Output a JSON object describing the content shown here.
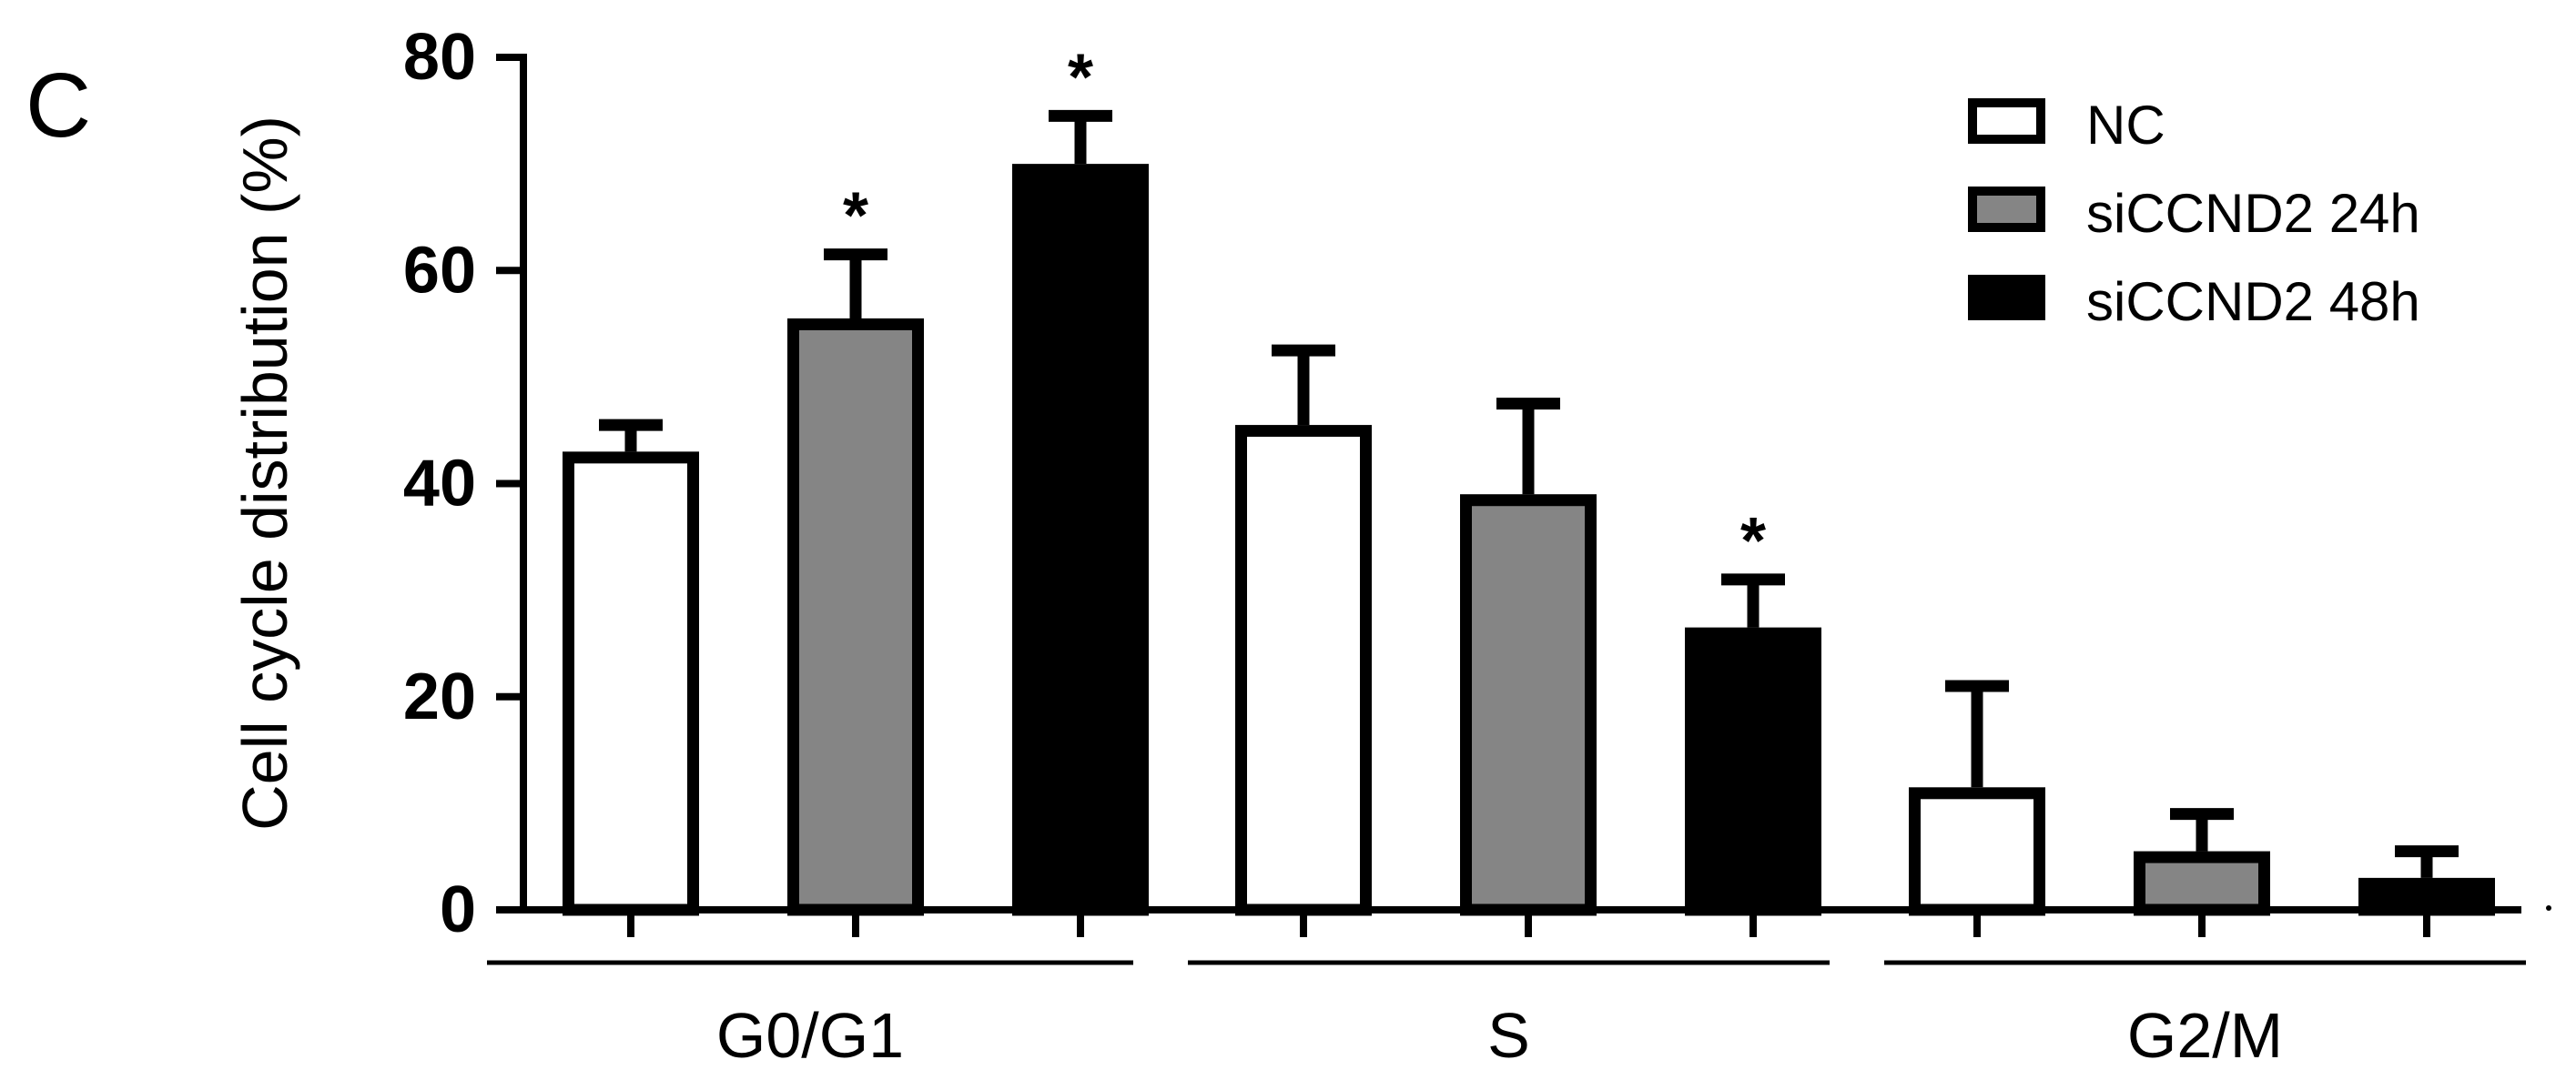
{
  "panel_label": "C",
  "chart_data": {
    "type": "bar",
    "ylabel": "Cell cycle distribution (%)",
    "xlabel": "",
    "ylim": [
      0,
      80
    ],
    "y_ticks": [
      "0",
      "20",
      "40",
      "60",
      "80"
    ],
    "grid": false,
    "legend_position": "top-right",
    "categories": [
      "G0/G1",
      "S",
      "G2/M"
    ],
    "series": [
      {
        "name": "NC",
        "fill": "#ffffff",
        "values": [
          43,
          45.5,
          11.5
        ],
        "errors": [
          2.5,
          7,
          9.5
        ],
        "significance": [
          "",
          "",
          ""
        ]
      },
      {
        "name": "siCCND2 24h",
        "fill": "#858585",
        "values": [
          55.5,
          39,
          5.5
        ],
        "errors": [
          6,
          8.5,
          3.5
        ],
        "significance": [
          "*",
          "",
          ""
        ]
      },
      {
        "name": "siCCND2 48h",
        "fill": "#000000",
        "values": [
          70,
          26.5,
          3
        ],
        "errors": [
          4.5,
          4.5,
          2.5
        ],
        "significance": [
          "*",
          "*",
          ""
        ]
      }
    ]
  }
}
